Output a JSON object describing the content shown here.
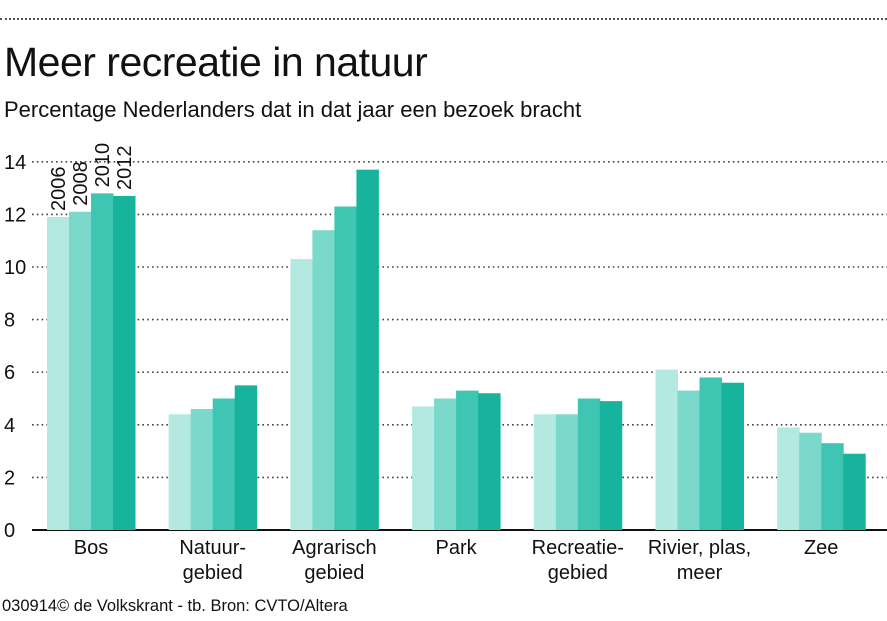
{
  "header": {
    "title": "Meer recreatie in natuur",
    "subtitle": "Percentage Nederlanders dat in dat jaar een bezoek bracht"
  },
  "footer": {
    "credit": "030914© de Volkskrant - tb. Bron: CVTO/Altera"
  },
  "chart_data": {
    "type": "bar",
    "title": "Meer recreatie in natuur",
    "subtitle": "Percentage Nederlanders dat in dat jaar een bezoek bracht",
    "xlabel": "",
    "ylabel": "",
    "ylim": [
      0,
      14
    ],
    "yticks": [
      0,
      2,
      4,
      6,
      8,
      10,
      12,
      14
    ],
    "grid": true,
    "legend_placement": "inside-first-group-vertical",
    "categories": [
      [
        "Bos"
      ],
      [
        "Natuur-",
        "gebied"
      ],
      [
        "Agrarisch",
        "gebied"
      ],
      [
        "Park"
      ],
      [
        "Recreatie-",
        "gebied"
      ],
      [
        "Rivier, plas,",
        "meer"
      ],
      [
        "Zee"
      ]
    ],
    "series": [
      {
        "name": "2006",
        "color": "#b3e9e1",
        "values": [
          11.9,
          4.4,
          10.3,
          4.7,
          4.4,
          6.1,
          3.9
        ]
      },
      {
        "name": "2008",
        "color": "#7ad9cb",
        "values": [
          12.1,
          4.6,
          11.4,
          5.0,
          4.4,
          5.3,
          3.7
        ]
      },
      {
        "name": "2010",
        "color": "#3fc6b3",
        "values": [
          12.8,
          5.0,
          12.3,
          5.3,
          5.0,
          5.8,
          3.3
        ]
      },
      {
        "name": "2012",
        "color": "#17b39c",
        "values": [
          12.7,
          5.5,
          13.7,
          5.2,
          4.9,
          5.6,
          2.9
        ]
      }
    ]
  }
}
